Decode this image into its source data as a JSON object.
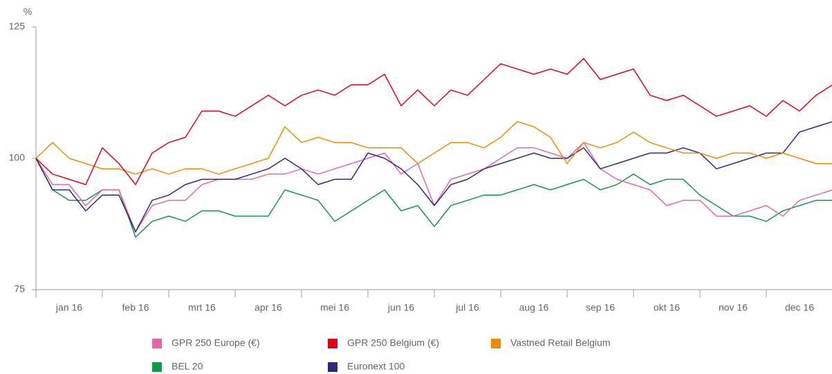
{
  "chart_data": {
    "type": "line",
    "y_label": "%",
    "categories": [
      "jan 16",
      "feb 16",
      "mrt 16",
      "apr 16",
      "mei 16",
      "jun 16",
      "jul 16",
      "aug 16",
      "sep 16",
      "okt 16",
      "nov 16",
      "dec 16"
    ],
    "x": [
      0,
      0.25,
      0.5,
      0.75,
      1,
      1.25,
      1.5,
      1.75,
      2,
      2.25,
      2.5,
      2.75,
      3,
      3.25,
      3.5,
      3.75,
      4,
      4.25,
      4.5,
      4.75,
      5,
      5.25,
      5.5,
      5.75,
      6,
      6.25,
      6.5,
      6.75,
      7,
      7.25,
      7.5,
      7.75,
      8,
      8.25,
      8.5,
      8.75,
      9,
      9.25,
      9.5,
      9.75,
      10,
      10.25,
      10.5,
      10.75,
      11,
      11.25,
      11.5,
      11.75,
      12
    ],
    "xlim": [
      0,
      12
    ],
    "xticks": [
      0,
      1,
      2,
      3,
      4,
      5,
      6,
      7,
      8,
      9,
      10,
      11
    ],
    "ylim": [
      75,
      125
    ],
    "yticks": [
      75,
      100,
      125
    ],
    "series": [
      {
        "name": "BEL 20",
        "color": "#0f9a48",
        "values": [
          100,
          94,
          92,
          92,
          94,
          94,
          85,
          88,
          89,
          88,
          90,
          90,
          89,
          89,
          89,
          94,
          93,
          92,
          88,
          90,
          92,
          94,
          90,
          91,
          87,
          91,
          92,
          93,
          93,
          94,
          95,
          94,
          95,
          96,
          94,
          95,
          97,
          95,
          96,
          96,
          93,
          91,
          89,
          89,
          88,
          90,
          91,
          92,
          92
        ]
      },
      {
        "name": "GPR 250 Europe (€)",
        "color": "#e667a8",
        "values": [
          100,
          95,
          95,
          91,
          94,
          94,
          86,
          91,
          92,
          92,
          95,
          96,
          96,
          96,
          97,
          97,
          98,
          97,
          98,
          99,
          100,
          101,
          97,
          99,
          91,
          96,
          97,
          98,
          100,
          102,
          102,
          101,
          100,
          103,
          98,
          96,
          95,
          94,
          91,
          92,
          92,
          89,
          89,
          90,
          91,
          89,
          92,
          93,
          94
        ]
      },
      {
        "name": "Euronext 100",
        "color": "#2d2a7a",
        "values": [
          100,
          94,
          94,
          90,
          93,
          93,
          86,
          92,
          93,
          95,
          96,
          96,
          96,
          97,
          98,
          100,
          98,
          95,
          96,
          96,
          101,
          100,
          98,
          95,
          91,
          95,
          96,
          98,
          99,
          100,
          101,
          100,
          100,
          102,
          98,
          99,
          100,
          101,
          101,
          102,
          101,
          98,
          99,
          100,
          101,
          101,
          105,
          106,
          107
        ]
      },
      {
        "name": "Vastned Retail Belgium",
        "color": "#f08a00",
        "values": [
          100,
          103,
          100,
          99,
          98,
          98,
          97,
          98,
          97,
          98,
          98,
          97,
          98,
          99,
          100,
          106,
          103,
          104,
          103,
          103,
          102,
          102,
          102,
          99,
          101,
          103,
          103,
          102,
          104,
          107,
          106,
          104,
          99,
          103,
          102,
          103,
          105,
          103,
          102,
          101,
          101,
          100,
          101,
          101,
          100,
          101,
          100,
          99,
          99
        ]
      },
      {
        "name": "GPR 250 Belgium (€)",
        "color": "#e3001b",
        "values": [
          100,
          97,
          96,
          95,
          102,
          99,
          95,
          101,
          103,
          104,
          109,
          109,
          108,
          110,
          112,
          110,
          112,
          113,
          112,
          114,
          114,
          116,
          110,
          113,
          110,
          113,
          112,
          115,
          118,
          117,
          116,
          117,
          116,
          119,
          115,
          116,
          117,
          112,
          111,
          112,
          110,
          108,
          109,
          110,
          108,
          111,
          109,
          112,
          114
        ]
      }
    ],
    "legend_order": [
      1,
      4,
      3,
      0,
      2
    ]
  }
}
